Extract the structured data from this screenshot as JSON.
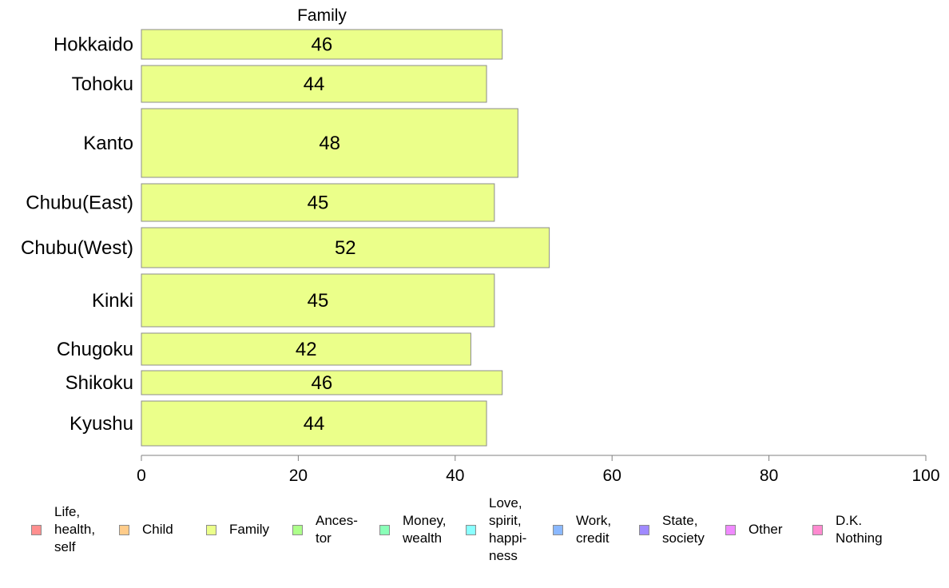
{
  "chart_data": {
    "type": "bar",
    "orientation": "horizontal",
    "title": "Family",
    "categories": [
      "Hokkaido",
      "Tohoku",
      "Kanto",
      "Chubu(East)",
      "Chubu(West)",
      "Kinki",
      "Chugoku",
      "Shikoku",
      "Kyushu"
    ],
    "values": [
      46,
      44,
      48,
      45,
      52,
      45,
      42,
      46,
      44
    ],
    "xlim": [
      0,
      100
    ],
    "x_ticks": [
      "0",
      "20",
      "40",
      "60",
      "80",
      "100"
    ],
    "bar_color": "#ebff8a",
    "grid": false,
    "legend_position": "bottom",
    "legend": [
      {
        "label": "Life,\nhealth,\nself",
        "color": "#ff8f8f"
      },
      {
        "label": "Child",
        "color": "#ffcc8a"
      },
      {
        "label": "Family",
        "color": "#ebff8a"
      },
      {
        "label": "Ances-\ntor",
        "color": "#adff8a"
      },
      {
        "label": "Money,\nwealth",
        "color": "#8affb8"
      },
      {
        "label": "Love,\nspirit,\nhappi-\nness",
        "color": "#8affff"
      },
      {
        "label": "Work,\ncredit",
        "color": "#8ab8ff"
      },
      {
        "label": "State,\nsociety",
        "color": "#a08aff"
      },
      {
        "label": "Other",
        "color": "#f08aff"
      },
      {
        "label": "D.K.\nNothing",
        "color": "#ff8ad0"
      }
    ]
  }
}
